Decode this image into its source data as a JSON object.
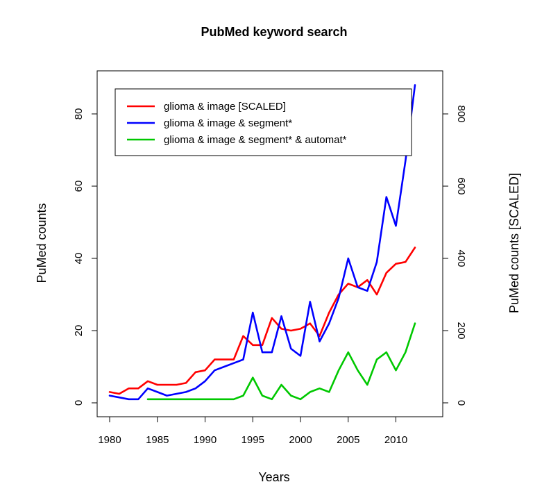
{
  "chart_data": {
    "type": "line",
    "title": "PubMed keyword search",
    "xlabel": "Years",
    "ylabel": "PuMed counts",
    "ylabel_right": "PuMed counts [SCALED]",
    "xlim": [
      1980,
      2012
    ],
    "ylim": [
      0,
      90
    ],
    "ylim_right": [
      0,
      900
    ],
    "x_ticks": [
      1980,
      1985,
      1990,
      1995,
      2000,
      2005,
      2010
    ],
    "y_ticks": [
      0,
      20,
      40,
      60,
      80
    ],
    "y_ticks_right": [
      0,
      200,
      400,
      600,
      800
    ],
    "grid": false,
    "legend_position": "top-left",
    "series": [
      {
        "name": "glioma & image  [SCALED]",
        "color": "#ff0000",
        "x": [
          1980,
          1981,
          1982,
          1983,
          1984,
          1985,
          1986,
          1987,
          1988,
          1989,
          1990,
          1991,
          1992,
          1993,
          1994,
          1995,
          1996,
          1997,
          1998,
          1999,
          2000,
          2001,
          2002,
          2003,
          2004,
          2005,
          2006,
          2007,
          2008,
          2009,
          2010,
          2011,
          2012
        ],
        "values": [
          3,
          2.5,
          4,
          4,
          6,
          5,
          5,
          5,
          5.5,
          8.5,
          9,
          12,
          12,
          12,
          18.5,
          16,
          16,
          23.5,
          20.5,
          20,
          20.5,
          22,
          18.5,
          25,
          30,
          33,
          32,
          34,
          30,
          36,
          38.5,
          39,
          43
        ]
      },
      {
        "name": "glioma & image & segment*",
        "color": "#0000ff",
        "x": [
          1980,
          1981,
          1982,
          1983,
          1984,
          1985,
          1986,
          1987,
          1988,
          1989,
          1990,
          1991,
          1992,
          1993,
          1994,
          1995,
          1996,
          1997,
          1998,
          1999,
          2000,
          2001,
          2002,
          2003,
          2004,
          2005,
          2006,
          2007,
          2008,
          2009,
          2010,
          2011,
          2012
        ],
        "values": [
          2,
          1.5,
          1,
          1,
          4,
          3,
          2,
          2.5,
          3,
          4,
          6,
          9,
          10,
          11,
          12,
          25,
          14,
          14,
          24,
          15,
          13,
          28,
          17,
          22,
          29,
          40,
          32,
          31,
          39,
          57,
          49,
          67,
          88
        ]
      },
      {
        "name": "glioma & image & segment* & automat*",
        "color": "#00c800",
        "x": [
          1984,
          1985,
          1986,
          1987,
          1988,
          1989,
          1990,
          1991,
          1992,
          1993,
          1994,
          1995,
          1996,
          1997,
          1998,
          1999,
          2000,
          2001,
          2002,
          2003,
          2004,
          2005,
          2006,
          2007,
          2008,
          2009,
          2010,
          2011,
          2012
        ],
        "values": [
          1,
          1,
          1,
          1,
          1,
          1,
          1,
          1,
          1,
          1,
          2,
          7,
          2,
          1,
          5,
          2,
          1,
          3,
          4,
          3,
          9,
          14,
          9,
          5,
          12,
          14,
          9,
          14,
          22
        ]
      }
    ]
  }
}
